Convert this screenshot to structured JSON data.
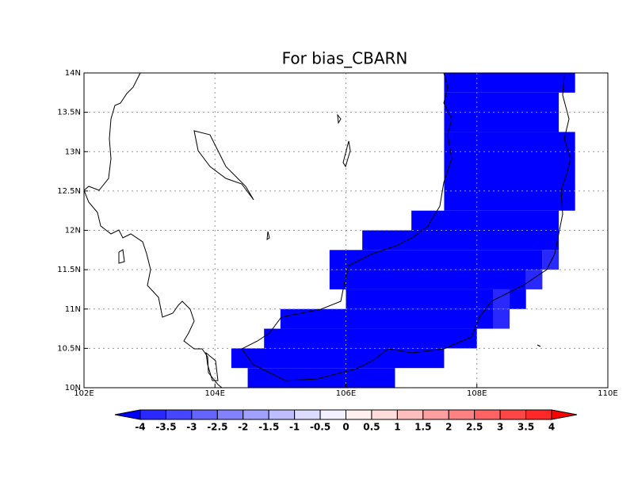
{
  "chart_data": {
    "type": "gridmap",
    "title": "For bias_CBARN",
    "xlim": [
      102,
      110
    ],
    "ylim": [
      10,
      14
    ],
    "xticks": [
      {
        "value": 102,
        "label": "102E"
      },
      {
        "value": 104,
        "label": "104E"
      },
      {
        "value": 106,
        "label": "106E"
      },
      {
        "value": 108,
        "label": "108E"
      },
      {
        "value": 110,
        "label": "110E"
      }
    ],
    "yticks": [
      {
        "value": 10,
        "label": "10N"
      },
      {
        "value": 10.5,
        "label": "10.5N"
      },
      {
        "value": 11,
        "label": "11N"
      },
      {
        "value": 11.5,
        "label": "11.5N"
      },
      {
        "value": 12,
        "label": "12N"
      },
      {
        "value": 12.5,
        "label": "12.5N"
      },
      {
        "value": 13,
        "label": "13N"
      },
      {
        "value": 13.5,
        "label": "13.5N"
      },
      {
        "value": 14,
        "label": "14N"
      }
    ],
    "grid": true,
    "levels": [
      -4,
      -3.5,
      -3,
      -2.5,
      -2,
      -1.5,
      -1,
      -0.5,
      0,
      0.5,
      1,
      1.5,
      2,
      2.5,
      3,
      3.5,
      4
    ],
    "colors": [
      "#0000ff",
      "#2828ff",
      "#4646ff",
      "#6464ff",
      "#8282ff",
      "#a0a0ff",
      "#bebeff",
      "#dcdcff",
      "#f3f0ff",
      "#fff0f0",
      "#ffdcdc",
      "#ffbebe",
      "#ffa0a0",
      "#ff8282",
      "#ff6464",
      "#ff4646",
      "#ff2828",
      "#ff0000"
    ],
    "cells": [
      {
        "lon": [
          107.5,
          109.5
        ],
        "lat": [
          13.75,
          14
        ],
        "value": -4.2
      },
      {
        "lon": [
          107.5,
          109.25
        ],
        "lat": [
          13.25,
          13.75
        ],
        "value": -4.2
      },
      {
        "lon": [
          107.5,
          109.5
        ],
        "lat": [
          12.25,
          13.25
        ],
        "value": -4.2
      },
      {
        "lon": [
          107,
          109.25
        ],
        "lat": [
          12,
          12.25
        ],
        "value": -4.2
      },
      {
        "lon": [
          106.25,
          109.25
        ],
        "lat": [
          11.75,
          12
        ],
        "value": -4.2
      },
      {
        "lon": [
          105.75,
          109
        ],
        "lat": [
          11.5,
          11.75
        ],
        "value": -4.2
      },
      {
        "lon": [
          109,
          109.25
        ],
        "lat": [
          11.5,
          11.75
        ],
        "value": -3.8
      },
      {
        "lon": [
          105.75,
          108.75
        ],
        "lat": [
          11.25,
          11.5
        ],
        "value": -4.2
      },
      {
        "lon": [
          108.75,
          109
        ],
        "lat": [
          11.25,
          11.5
        ],
        "value": -3.8
      },
      {
        "lon": [
          106,
          108.25
        ],
        "lat": [
          11,
          11.25
        ],
        "value": -4.2
      },
      {
        "lon": [
          108.25,
          108.5
        ],
        "lat": [
          11,
          11.25
        ],
        "value": -3.8
      },
      {
        "lon": [
          108.5,
          108.75
        ],
        "lat": [
          11,
          11.25
        ],
        "value": -4.2
      },
      {
        "lon": [
          105,
          108.25
        ],
        "lat": [
          10.75,
          11
        ],
        "value": -4.2
      },
      {
        "lon": [
          108.25,
          108.5
        ],
        "lat": [
          10.75,
          11
        ],
        "value": -3.8
      },
      {
        "lon": [
          104.75,
          108
        ],
        "lat": [
          10.5,
          10.75
        ],
        "value": -4.2
      },
      {
        "lon": [
          104.25,
          107.5
        ],
        "lat": [
          10.25,
          10.5
        ],
        "value": -4.2
      },
      {
        "lon": [
          104.5,
          106.75
        ],
        "lat": [
          10,
          10.25
        ],
        "value": -4.2
      }
    ]
  }
}
